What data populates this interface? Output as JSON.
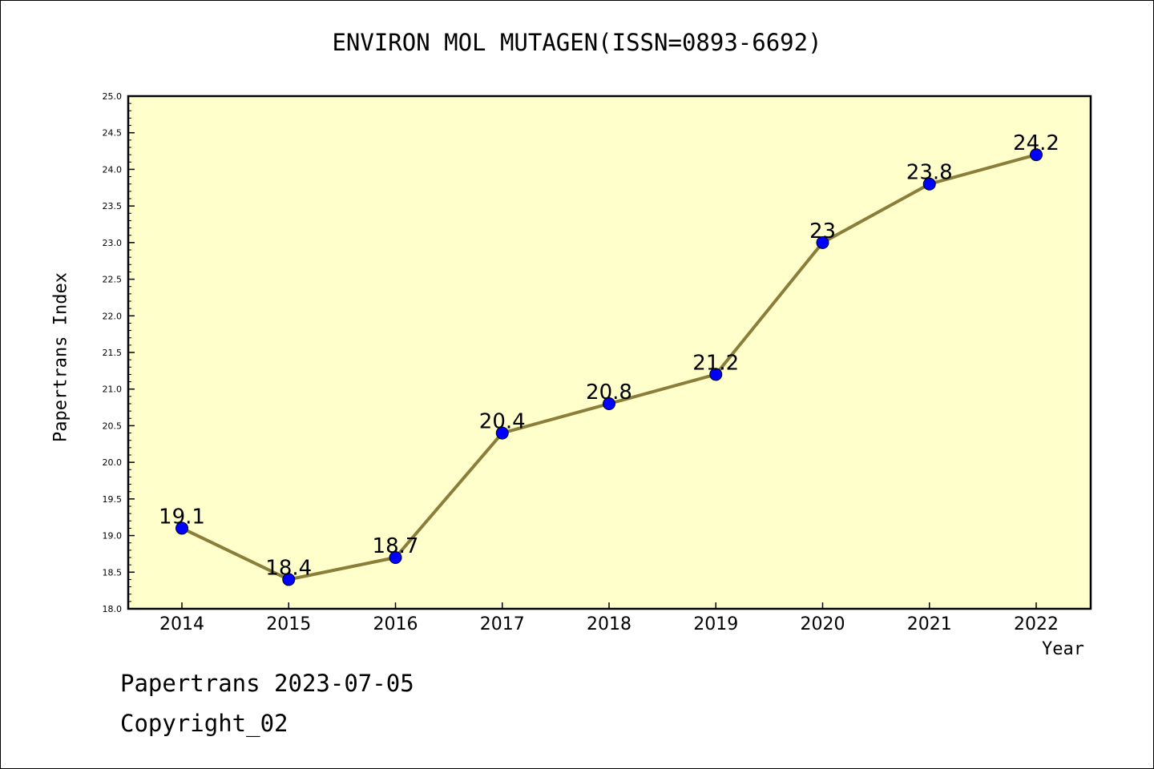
{
  "chart_data": {
    "type": "line",
    "title": "ENVIRON MOL MUTAGEN(ISSN=0893-6692)",
    "xlabel": "Year",
    "ylabel": "Papertrans Index",
    "categories": [
      "2014",
      "2015",
      "2016",
      "2017",
      "2018",
      "2019",
      "2020",
      "2021",
      "2022"
    ],
    "series": [
      {
        "values": [
          19.1,
          18.4,
          18.7,
          20.4,
          20.8,
          21.2,
          23,
          23.8,
          24.2
        ],
        "labels": [
          "19.1",
          "18.4",
          "18.7",
          "20.4",
          "20.8",
          "21.2",
          "23",
          "23.8",
          "24.2"
        ]
      }
    ],
    "ylim": [
      18.0,
      25.0
    ],
    "ytick_labels": [
      "18.0",
      "18.5",
      "19.0",
      "19.5",
      "20.0",
      "20.5",
      "21.0",
      "21.5",
      "22.0",
      "22.5",
      "23.0",
      "23.5",
      "24.0",
      "24.5",
      "25.0"
    ],
    "grid": false,
    "colors": {
      "plot_background": "#ffffcc",
      "line": "#8b7d3a",
      "marker": "#0000ff"
    }
  },
  "footer": {
    "line1": "Papertrans 2023-07-05",
    "line2": "Copyright_02"
  }
}
